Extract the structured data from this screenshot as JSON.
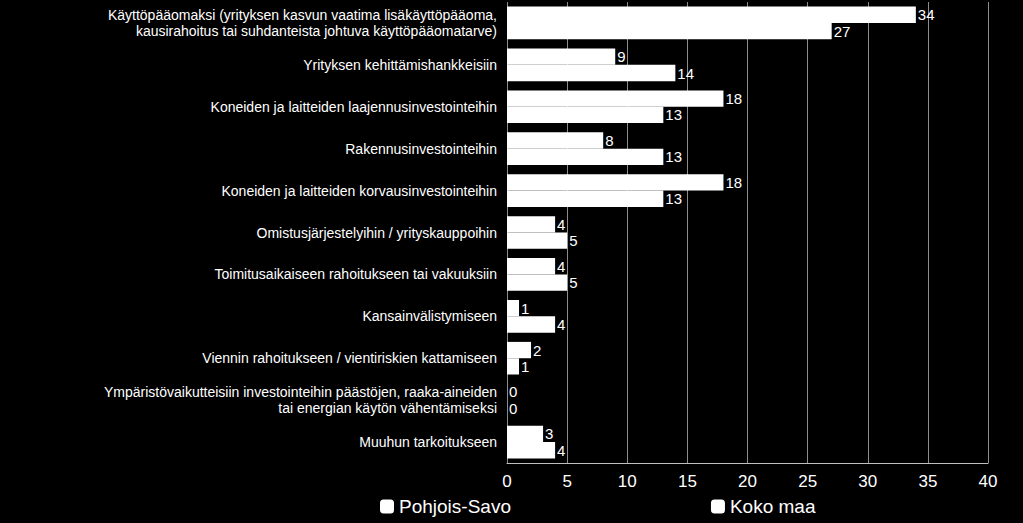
{
  "chart_data": {
    "type": "bar",
    "orientation": "horizontal",
    "categories": [
      "Käyttöpääomaksi (yrityksen kasvun vaatima lisäkäyttöpääoma,\nkausirahoitus tai suhdanteista johtuva käyttöpääomatarve)",
      "Yrityksen kehittämishankkeisiin",
      "Koneiden ja laitteiden laajennusinvestointeihin",
      "Rakennusinvestointeihin",
      "Koneiden ja laitteiden korvausinvestointeihin",
      "Omistusjärjestelyihin / yrityskauppoihin",
      "Toimitusaikaiseen rahoitukseen tai vakuuksiin",
      "Kansainvälistymiseen",
      "Viennin rahoitukseen / vientiriskien kattamiseen",
      "Ympäristövaikutteisiin investointeihin päästöjen, raaka-aineiden\ntai energian käytön vähentämiseksi",
      "Muuhun tarkoitukseen"
    ],
    "series": [
      {
        "name": "Pohjois-Savo",
        "color": "#ffffff",
        "values": [
          34,
          9,
          18,
          8,
          18,
          4,
          4,
          1,
          2,
          0,
          3
        ]
      },
      {
        "name": "Koko maa",
        "color": "#ffffff",
        "values": [
          27,
          14,
          13,
          13,
          13,
          5,
          5,
          4,
          1,
          0,
          4
        ]
      }
    ],
    "xlim": [
      0,
      40
    ],
    "xticks": [
      0,
      5,
      10,
      15,
      20,
      25,
      30,
      35,
      40
    ],
    "grid": true,
    "legend": "bottom",
    "data_labels": true
  }
}
